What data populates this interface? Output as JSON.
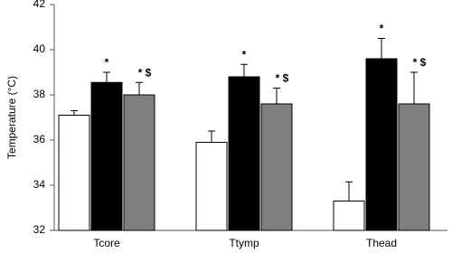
{
  "chart_data": {
    "type": "bar",
    "y_label": "Temperature (°C)",
    "categories": [
      "Tcore",
      "Ttymp",
      "Thead"
    ],
    "series": [
      {
        "color": "#ffffff",
        "values": [
          37.1,
          35.9,
          33.3
        ],
        "errors": [
          0.2,
          0.5,
          0.85
        ]
      },
      {
        "color": "#000000",
        "values": [
          38.55,
          38.8,
          39.6
        ],
        "errors": [
          0.45,
          0.55,
          0.9
        ],
        "annotations": [
          "*",
          "*",
          "*"
        ]
      },
      {
        "color": "#808080",
        "values": [
          38.0,
          37.6,
          37.6
        ],
        "errors": [
          0.55,
          0.7,
          1.4
        ],
        "annotations": [
          "* $",
          "* $",
          "* $"
        ]
      }
    ],
    "ylim": [
      32,
      42
    ],
    "yticks": [
      32,
      34,
      36,
      38,
      40,
      42
    ]
  }
}
